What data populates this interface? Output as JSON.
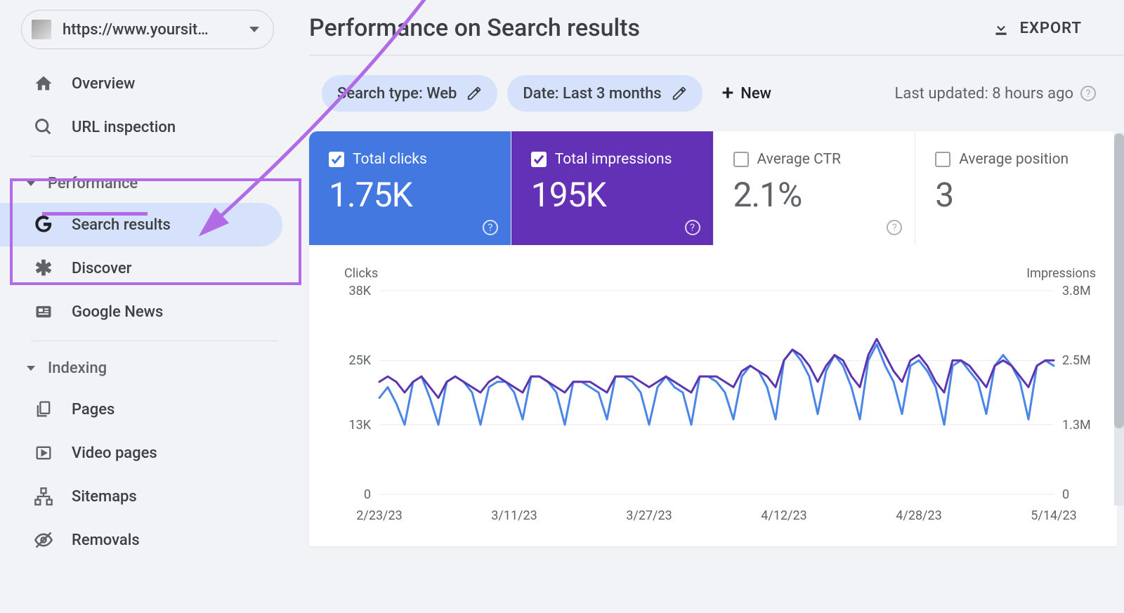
{
  "site_selector": {
    "url_label": "https://www.yoursit…"
  },
  "sidebar": {
    "top_items": [
      {
        "label": "Overview",
        "icon": "home"
      },
      {
        "label": "URL inspection",
        "icon": "search"
      }
    ],
    "performance_section": {
      "label": "Performance"
    },
    "performance_items": [
      {
        "label": "Search results",
        "icon": "google",
        "active": true
      },
      {
        "label": "Discover",
        "icon": "asterisk"
      },
      {
        "label": "Google News",
        "icon": "news"
      }
    ],
    "indexing_section": {
      "label": "Indexing"
    },
    "indexing_items": [
      {
        "label": "Pages",
        "icon": "pages"
      },
      {
        "label": "Video pages",
        "icon": "video"
      },
      {
        "label": "Sitemaps",
        "icon": "sitemap"
      },
      {
        "label": "Removals",
        "icon": "removal"
      }
    ]
  },
  "header": {
    "title": "Performance on Search results",
    "export_label": "EXPORT"
  },
  "filters": {
    "search_type": "Search type: Web",
    "date": "Date: Last 3 months",
    "new_label": "New",
    "last_updated": "Last updated: 8 hours ago"
  },
  "metrics": [
    {
      "label": "Total clicks",
      "value": "1.75K",
      "checked": true
    },
    {
      "label": "Total impressions",
      "value": "195K",
      "checked": true
    },
    {
      "label": "Average CTR",
      "value": "2.1%",
      "checked": false
    },
    {
      "label": "Average position",
      "value": "3",
      "checked": false
    }
  ],
  "metric_colors": {
    "clicks_bg": "#4378e0",
    "impressions_bg": "#6231b5",
    "inactive_text": "#5f6368"
  },
  "chart": {
    "type": "line",
    "left_axis_label": "Clicks",
    "right_axis_label": "Impressions",
    "y_left": {
      "ticks": [
        "0",
        "13K",
        "25K",
        "38K"
      ],
      "lim": [
        0,
        38
      ]
    },
    "y_right": {
      "ticks": [
        "0",
        "1.3M",
        "2.5M",
        "3.8M"
      ],
      "lim": [
        0,
        3.8
      ]
    },
    "x_labels": [
      "2/23/23",
      "3/11/23",
      "3/27/23",
      "4/12/23",
      "4/28/23",
      "5/14/23"
    ],
    "grid_color": "#e8eaed",
    "background_color": "#ffffff",
    "label_fontsize": 18,
    "series": {
      "clicks": {
        "color": "#4a86e8",
        "stroke_width": 3,
        "values": [
          18,
          20,
          17,
          13,
          21,
          22,
          18,
          13,
          21,
          22,
          21,
          19,
          13,
          20,
          21,
          21,
          19,
          14,
          22,
          22,
          21,
          19,
          13,
          21,
          21,
          20,
          19,
          14,
          22,
          22,
          21,
          19,
          13,
          20,
          22,
          20,
          19,
          13,
          22,
          22,
          21,
          19,
          14,
          22,
          24,
          23,
          20,
          14,
          25,
          27,
          25,
          22,
          15,
          23,
          26,
          24,
          20,
          14,
          25,
          28,
          24,
          21,
          15,
          24,
          25,
          23,
          20,
          13,
          24,
          25,
          23,
          21,
          15,
          24,
          26,
          24,
          21,
          14,
          24,
          25,
          24
        ]
      },
      "impressions": {
        "color": "#5e35b1",
        "stroke_width": 3,
        "values": [
          21,
          22,
          21,
          19,
          21,
          22,
          20,
          18,
          21,
          22,
          21,
          20,
          19,
          21,
          22,
          21,
          20,
          19,
          22,
          22,
          21,
          20,
          19,
          21,
          21,
          21,
          20,
          19,
          22,
          22,
          22,
          21,
          20,
          21,
          22,
          21,
          20,
          19,
          22,
          22,
          22,
          21,
          20,
          23,
          24,
          23,
          22,
          20,
          25,
          27,
          26,
          24,
          21,
          24,
          26,
          25,
          22,
          20,
          26,
          29,
          26,
          23,
          21,
          25,
          26,
          24,
          21,
          19,
          25,
          25,
          24,
          22,
          20,
          24,
          25,
          24,
          22,
          20,
          24,
          25,
          25
        ]
      }
    }
  },
  "annotation": {
    "underline_color": "#b16be6",
    "arrow_color": "#b16be6"
  }
}
